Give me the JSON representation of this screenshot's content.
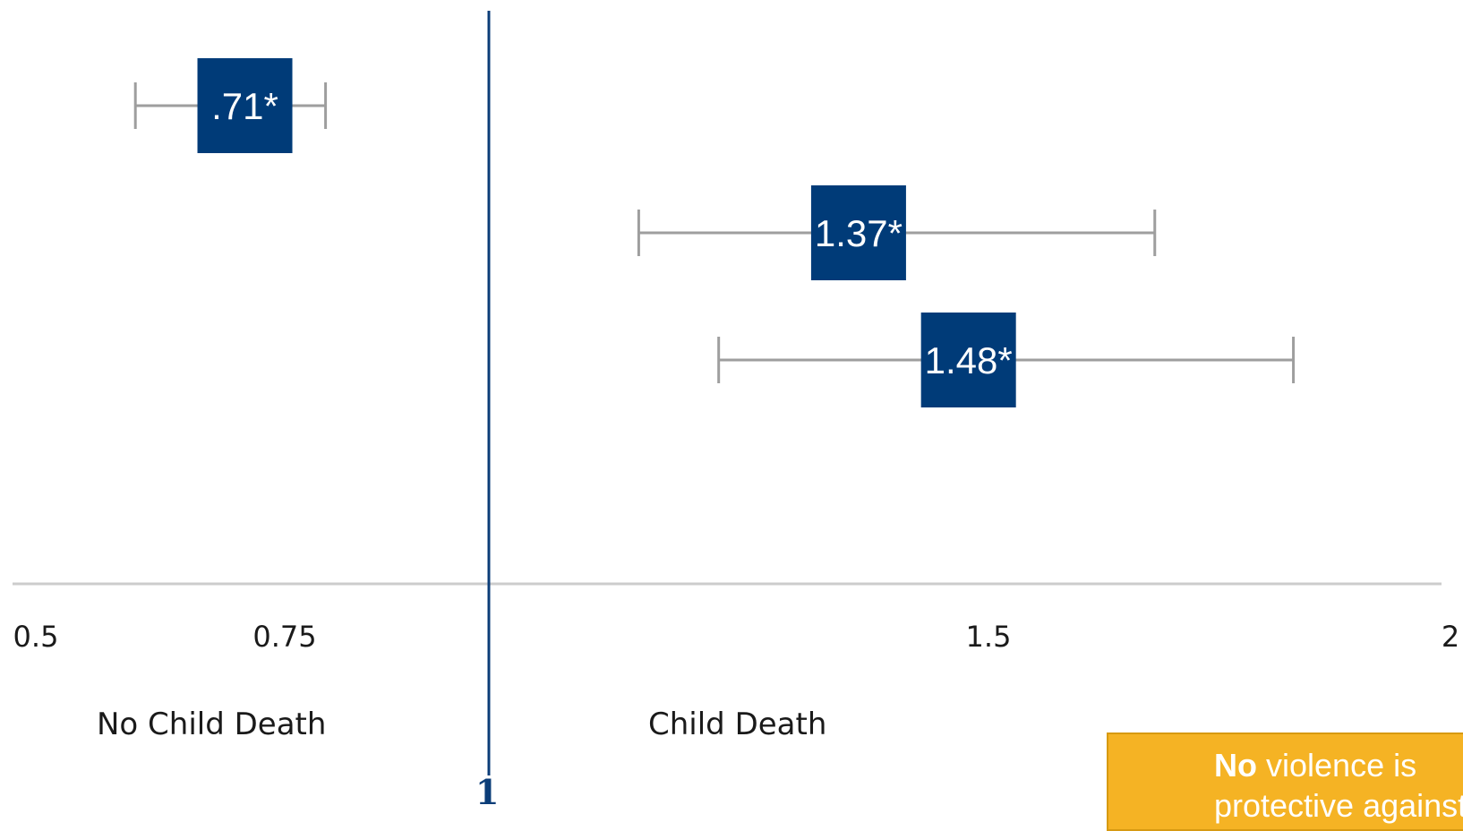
{
  "chart_data": {
    "type": "forest",
    "xlim": [
      0.5,
      2
    ],
    "x_tick_labels": [
      {
        "value": 0.5,
        "label": "0.5"
      },
      {
        "value": 0.75,
        "label": "0.75"
      },
      {
        "value": 1.5,
        "label": "1.5"
      },
      {
        "value": 2,
        "label": "2"
      }
    ],
    "reference_line": {
      "value": 1,
      "label": "1"
    },
    "points": [
      {
        "estimate": 0.71,
        "ci_low": 0.6,
        "ci_high": 0.8,
        "label": ".71*"
      },
      {
        "estimate": 1.37,
        "ci_low": 1.15,
        "ci_high": 1.68,
        "label": "1.37*"
      },
      {
        "estimate": 1.48,
        "ci_low": 1.23,
        "ci_high": 1.83,
        "label": "1.48*"
      }
    ],
    "region_labels": {
      "left": "No Child Death",
      "right": "Child Death"
    },
    "grid": false
  },
  "callout": {
    "bold": "No",
    "rest": "violence is",
    "line2": "protective against"
  },
  "colors": {
    "marker": "#003b78",
    "whisker": "#9e9e9e",
    "axis": "#cccccc",
    "reference": "#0b3d78",
    "callout": "#f5b324"
  }
}
